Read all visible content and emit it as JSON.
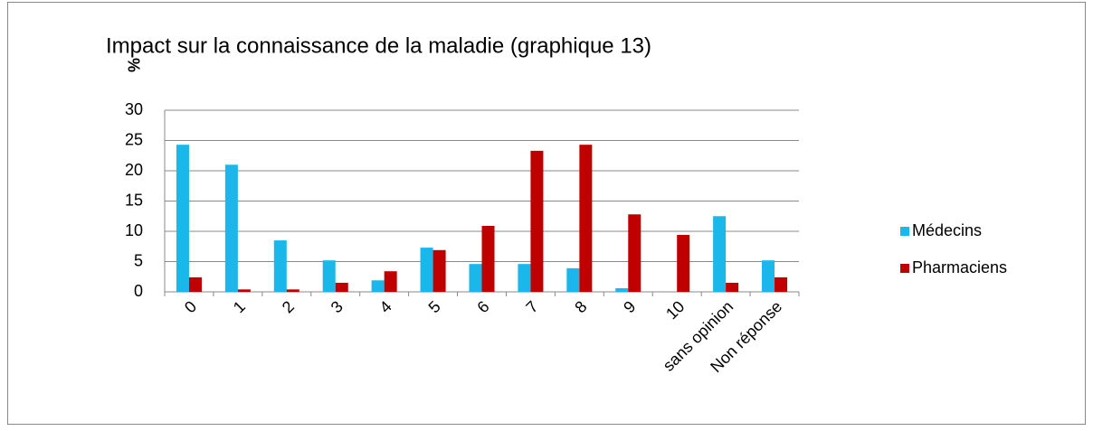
{
  "chart_data": {
    "type": "bar",
    "title": "Impact sur la connaissance de la maladie (graphique 13)",
    "y_label": "%",
    "categories": [
      "0",
      "1",
      "2",
      "3",
      "4",
      "5",
      "6",
      "7",
      "8",
      "9",
      "10",
      "sans opinion",
      "Non réponse"
    ],
    "series": [
      {
        "name": "Médecins",
        "color": "#1ab7ea",
        "values": [
          24.3,
          21.0,
          8.5,
          5.2,
          1.9,
          7.3,
          4.6,
          4.6,
          3.9,
          0.6,
          0,
          12.5,
          5.2
        ]
      },
      {
        "name": "Pharmaciens",
        "color": "#c00000",
        "values": [
          2.4,
          0.4,
          0.4,
          1.5,
          3.4,
          6.9,
          10.9,
          23.3,
          24.3,
          12.8,
          9.4,
          1.5,
          2.4
        ]
      }
    ],
    "ylim": [
      0,
      30
    ],
    "yticks": [
      0,
      5,
      10,
      15,
      20,
      25,
      30
    ],
    "grid": true,
    "legend": "right"
  }
}
